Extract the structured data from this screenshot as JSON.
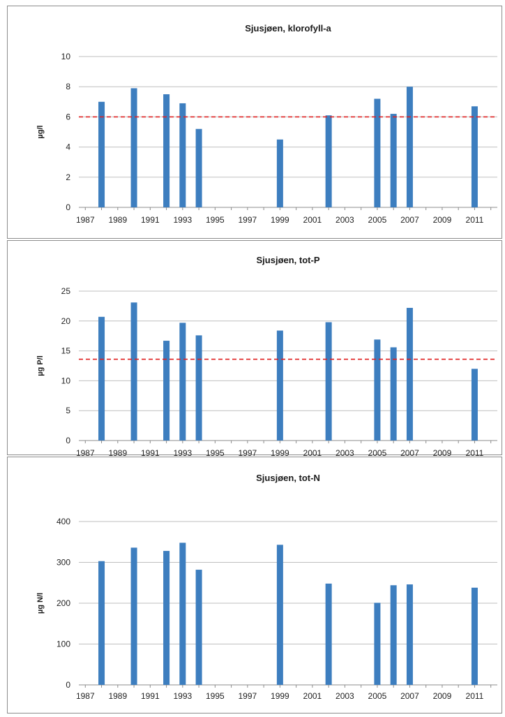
{
  "chart_data": [
    {
      "type": "bar",
      "title": "Sjusjøen, klorofyll-a",
      "xlabel": "",
      "ylabel": "µg/l",
      "ylim": [
        0,
        10
      ],
      "yticks": [
        0,
        2,
        4,
        6,
        8,
        10
      ],
      "xlim": [
        1986.6,
        2012.4
      ],
      "xticks": [
        1987,
        1989,
        1991,
        1993,
        1995,
        1997,
        1999,
        2001,
        2003,
        2005,
        2007,
        2009,
        2011
      ],
      "grid": true,
      "bar_color": "#3d7ebf",
      "x": [
        1988,
        1990,
        1992,
        1993,
        1994,
        1999,
        2002,
        2005,
        2006,
        2007,
        2011
      ],
      "values": [
        7.0,
        7.9,
        7.5,
        6.9,
        5.2,
        4.5,
        6.1,
        7.2,
        6.2,
        8.0,
        6.7
      ],
      "reference_line": {
        "value": 6,
        "color": "#e02020",
        "style": "dashed"
      }
    },
    {
      "type": "bar",
      "title": "Sjusjøen, tot-P",
      "xlabel": "",
      "ylabel": "µg P/l",
      "ylim": [
        0,
        25
      ],
      "yticks": [
        0,
        5,
        10,
        15,
        20,
        25
      ],
      "xlim": [
        1986.6,
        2012.4
      ],
      "xticks": [
        1987,
        1989,
        1991,
        1993,
        1995,
        1997,
        1999,
        2001,
        2003,
        2005,
        2007,
        2009,
        2011
      ],
      "grid": true,
      "bar_color": "#3d7ebf",
      "x": [
        1988,
        1990,
        1992,
        1993,
        1994,
        1999,
        2002,
        2005,
        2006,
        2007,
        2011
      ],
      "values": [
        20.7,
        23.1,
        16.7,
        19.7,
        17.6,
        18.4,
        19.8,
        16.9,
        15.6,
        22.2,
        12.0
      ],
      "reference_line": {
        "value": 13.6,
        "color": "#e02020",
        "style": "dashed"
      }
    },
    {
      "type": "bar",
      "title": "Sjusjøen, tot-N",
      "xlabel": "",
      "ylabel": "µg N/l",
      "ylim": [
        0,
        400
      ],
      "yticks": [
        0,
        100,
        200,
        300,
        400
      ],
      "xlim": [
        1986.6,
        2012.4
      ],
      "xticks": [
        1987,
        1989,
        1991,
        1993,
        1995,
        1997,
        1999,
        2001,
        2003,
        2005,
        2007,
        2009,
        2011
      ],
      "grid": true,
      "bar_color": "#3d7ebf",
      "x": [
        1988,
        1990,
        1992,
        1993,
        1994,
        1999,
        2002,
        2005,
        2006,
        2007,
        2011
      ],
      "values": [
        303,
        336,
        328,
        348,
        282,
        343,
        248,
        201,
        244,
        246,
        238
      ]
    }
  ]
}
